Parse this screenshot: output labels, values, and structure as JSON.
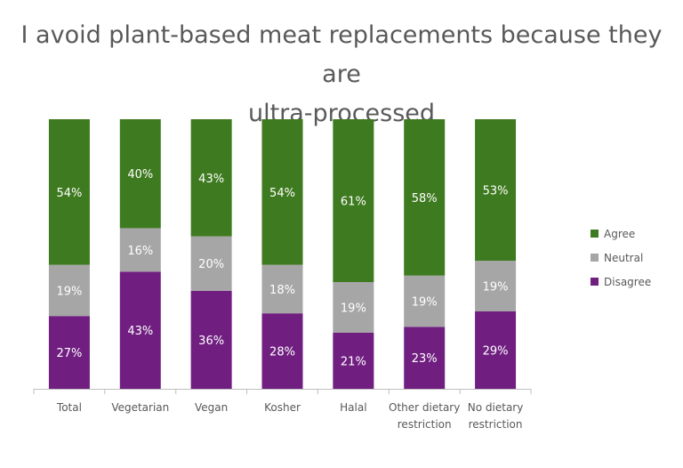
{
  "chart_data": {
    "type": "bar",
    "stacked": true,
    "normalized": true,
    "title_lines": [
      "I avoid plant-based meat replacements because they are",
      "ultra-processed"
    ],
    "categories": [
      [
        "Total"
      ],
      [
        "Vegetarian"
      ],
      [
        "Vegan"
      ],
      [
        "Kosher"
      ],
      [
        "Halal"
      ],
      [
        "Other dietary",
        "restriction"
      ],
      [
        "No dietary",
        "restriction"
      ]
    ],
    "series": [
      {
        "name": "Disagree",
        "color": "#701f81",
        "values": [
          27,
          43,
          36,
          28,
          21,
          23,
          29
        ],
        "labels": [
          "27%",
          "43%",
          "36%",
          "28%",
          "21%",
          "23%",
          "29%"
        ]
      },
      {
        "name": "Neutral",
        "color": "#a6a6a6",
        "values": [
          19,
          16,
          20,
          18,
          19,
          19,
          19
        ],
        "labels": [
          "19%",
          "16%",
          "20%",
          "18%",
          "19%",
          "19%",
          "19%"
        ]
      },
      {
        "name": "Agree",
        "color": "#3e7a1f",
        "values": [
          54,
          40,
          43,
          54,
          61,
          58,
          53
        ],
        "labels": [
          "54%",
          "40%",
          "43%",
          "54%",
          "61%",
          "58%",
          "53%"
        ]
      }
    ],
    "legend": {
      "position": "right",
      "order": [
        "Agree",
        "Neutral",
        "Disagree"
      ]
    },
    "ylim": [
      0,
      100
    ],
    "grid": false
  }
}
